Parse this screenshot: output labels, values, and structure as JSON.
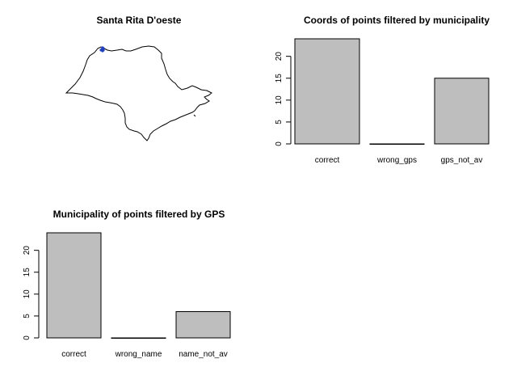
{
  "map_panel": {
    "title": "Santa Rita D'oeste",
    "point_color": "#1f3fbf"
  },
  "chart_data": [
    {
      "type": "bar",
      "title": "Coords of points filtered by municipality",
      "categories": [
        "correct",
        "wrong_gps",
        "gps_not_av"
      ],
      "values": [
        24,
        0,
        15
      ],
      "ylim": [
        0,
        24
      ],
      "yticks": [
        0,
        5,
        10,
        15,
        20
      ],
      "xlabel": "",
      "ylabel": "",
      "bar_color": "#bebebe",
      "grid": false
    },
    {
      "type": "bar",
      "title": "Municipality of points filtered by GPS",
      "categories": [
        "correct",
        "wrong_name",
        "name_not_av"
      ],
      "values": [
        24,
        0,
        6
      ],
      "ylim": [
        0,
        24
      ],
      "yticks": [
        0,
        5,
        10,
        15,
        20
      ],
      "xlabel": "",
      "ylabel": "",
      "bar_color": "#bebebe",
      "grid": false
    }
  ]
}
